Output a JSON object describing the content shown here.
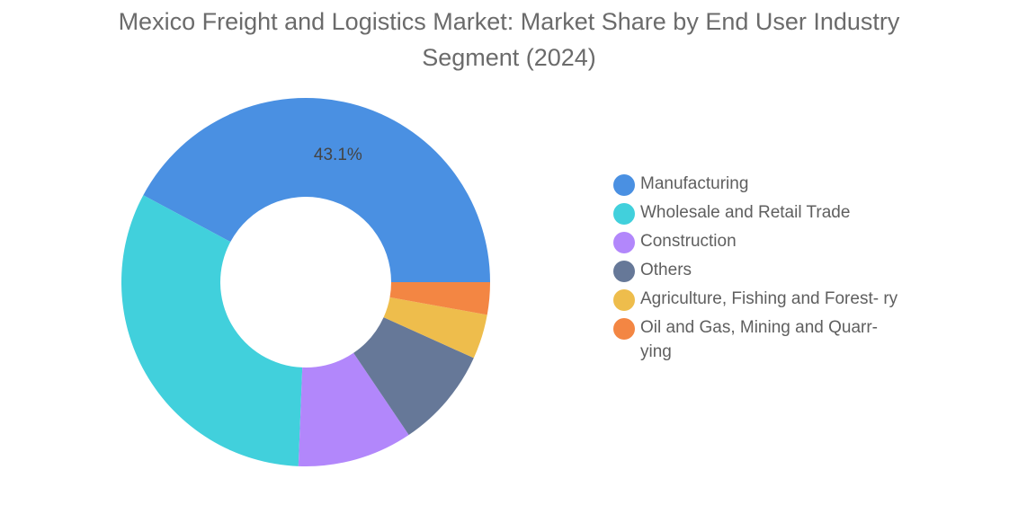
{
  "chart_data": {
    "type": "pie",
    "title_lines": [
      "Mexico Freight and Logistics Market: Market Share by End User Industry",
      "Segment (2024)"
    ],
    "categories": [
      "Manufacturing",
      "Wholesale and Retail Trade",
      "Construction",
      "Others",
      "Agriculture, Fishing and Forestry",
      "Oil and Gas, Mining and Quarrying"
    ],
    "legend_labels": [
      "Manufacturing",
      "Wholesale and Retail Trade",
      "Construction",
      "Others",
      "Agriculture, Fishing and Forest- ry",
      "Oil and Gas, Mining and Quarr- ying"
    ],
    "values": [
      43.1,
      32.9,
      10.3,
      9.0,
      4.0,
      2.9
    ],
    "colors": [
      "#4a90e2",
      "#41d0dc",
      "#b287fb",
      "#667898",
      "#eebd4c",
      "#f38643"
    ],
    "data_labels": [
      "43.1%",
      "",
      "",
      "",
      "",
      ""
    ],
    "donut": true,
    "legend_position": "right"
  }
}
